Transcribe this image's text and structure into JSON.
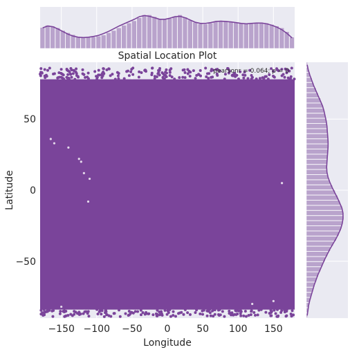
{
  "chart_data": {
    "type": "scatter",
    "title": "Spatial Location Plot",
    "xlabel": "Longitude",
    "ylabel": "Latitude",
    "xlim": [
      -180,
      180
    ],
    "ylim": [
      -90,
      90
    ],
    "xticks": [
      -150,
      -100,
      -50,
      0,
      50,
      100,
      150
    ],
    "yticks": [
      -50,
      0,
      50
    ],
    "annotation": "pearsonr = 0.064; p = 0",
    "grid": true,
    "colors": {
      "points": "#7a449a",
      "bars": "#b9a3cc",
      "kde": "#7a449a",
      "background": "#eaeaf2",
      "grid": "#ffffff"
    },
    "marginal_x": {
      "bin_edges_start": -180,
      "bin_width": 7.2,
      "density": [
        0.56,
        0.62,
        0.6,
        0.55,
        0.48,
        0.42,
        0.37,
        0.32,
        0.3,
        0.3,
        0.31,
        0.33,
        0.36,
        0.42,
        0.48,
        0.55,
        0.62,
        0.68,
        0.74,
        0.82,
        0.9,
        0.9,
        0.85,
        0.8,
        0.78,
        0.8,
        0.86,
        0.9,
        0.84,
        0.76,
        0.7,
        0.66,
        0.65,
        0.68,
        0.72,
        0.74,
        0.74,
        0.72,
        0.7,
        0.68,
        0.66,
        0.66,
        0.68,
        0.7,
        0.68,
        0.64,
        0.6,
        0.55,
        0.45,
        0.3
      ],
      "kde": [
        0.55,
        0.6,
        0.58,
        0.52,
        0.45,
        0.38,
        0.33,
        0.3,
        0.29,
        0.3,
        0.32,
        0.35,
        0.4,
        0.46,
        0.53,
        0.6,
        0.66,
        0.72,
        0.78,
        0.85,
        0.88,
        0.86,
        0.82,
        0.78,
        0.78,
        0.81,
        0.85,
        0.86,
        0.82,
        0.76,
        0.7,
        0.67,
        0.67,
        0.69,
        0.72,
        0.73,
        0.72,
        0.71,
        0.69,
        0.67,
        0.66,
        0.67,
        0.68,
        0.68,
        0.66,
        0.62,
        0.57,
        0.5,
        0.4,
        0.28
      ]
    },
    "marginal_y": {
      "bin_edges_start": -90,
      "bin_width": 3.6,
      "density": [
        0.03,
        0.05,
        0.07,
        0.1,
        0.14,
        0.18,
        0.22,
        0.27,
        0.32,
        0.38,
        0.44,
        0.5,
        0.57,
        0.64,
        0.72,
        0.8,
        0.87,
        0.93,
        0.97,
        1.0,
        0.99,
        0.96,
        0.9,
        0.84,
        0.77,
        0.7,
        0.63,
        0.58,
        0.55,
        0.54,
        0.55,
        0.56,
        0.57,
        0.58,
        0.58,
        0.57,
        0.56,
        0.55,
        0.53,
        0.5,
        0.47,
        0.43,
        0.38,
        0.32,
        0.26,
        0.2,
        0.15,
        0.1,
        0.06,
        0.03
      ],
      "kde": [
        0.02,
        0.04,
        0.06,
        0.09,
        0.13,
        0.17,
        0.21,
        0.26,
        0.31,
        0.37,
        0.43,
        0.49,
        0.56,
        0.63,
        0.71,
        0.79,
        0.86,
        0.92,
        0.96,
        0.98,
        0.98,
        0.95,
        0.89,
        0.83,
        0.76,
        0.69,
        0.63,
        0.58,
        0.55,
        0.54,
        0.55,
        0.56,
        0.57,
        0.58,
        0.58,
        0.57,
        0.56,
        0.55,
        0.53,
        0.5,
        0.47,
        0.43,
        0.37,
        0.31,
        0.25,
        0.19,
        0.14,
        0.09,
        0.05,
        0.02
      ]
    },
    "scatter_extent": {
      "lon": [
        -180,
        180
      ],
      "lat": [
        -84,
        78
      ]
    }
  }
}
